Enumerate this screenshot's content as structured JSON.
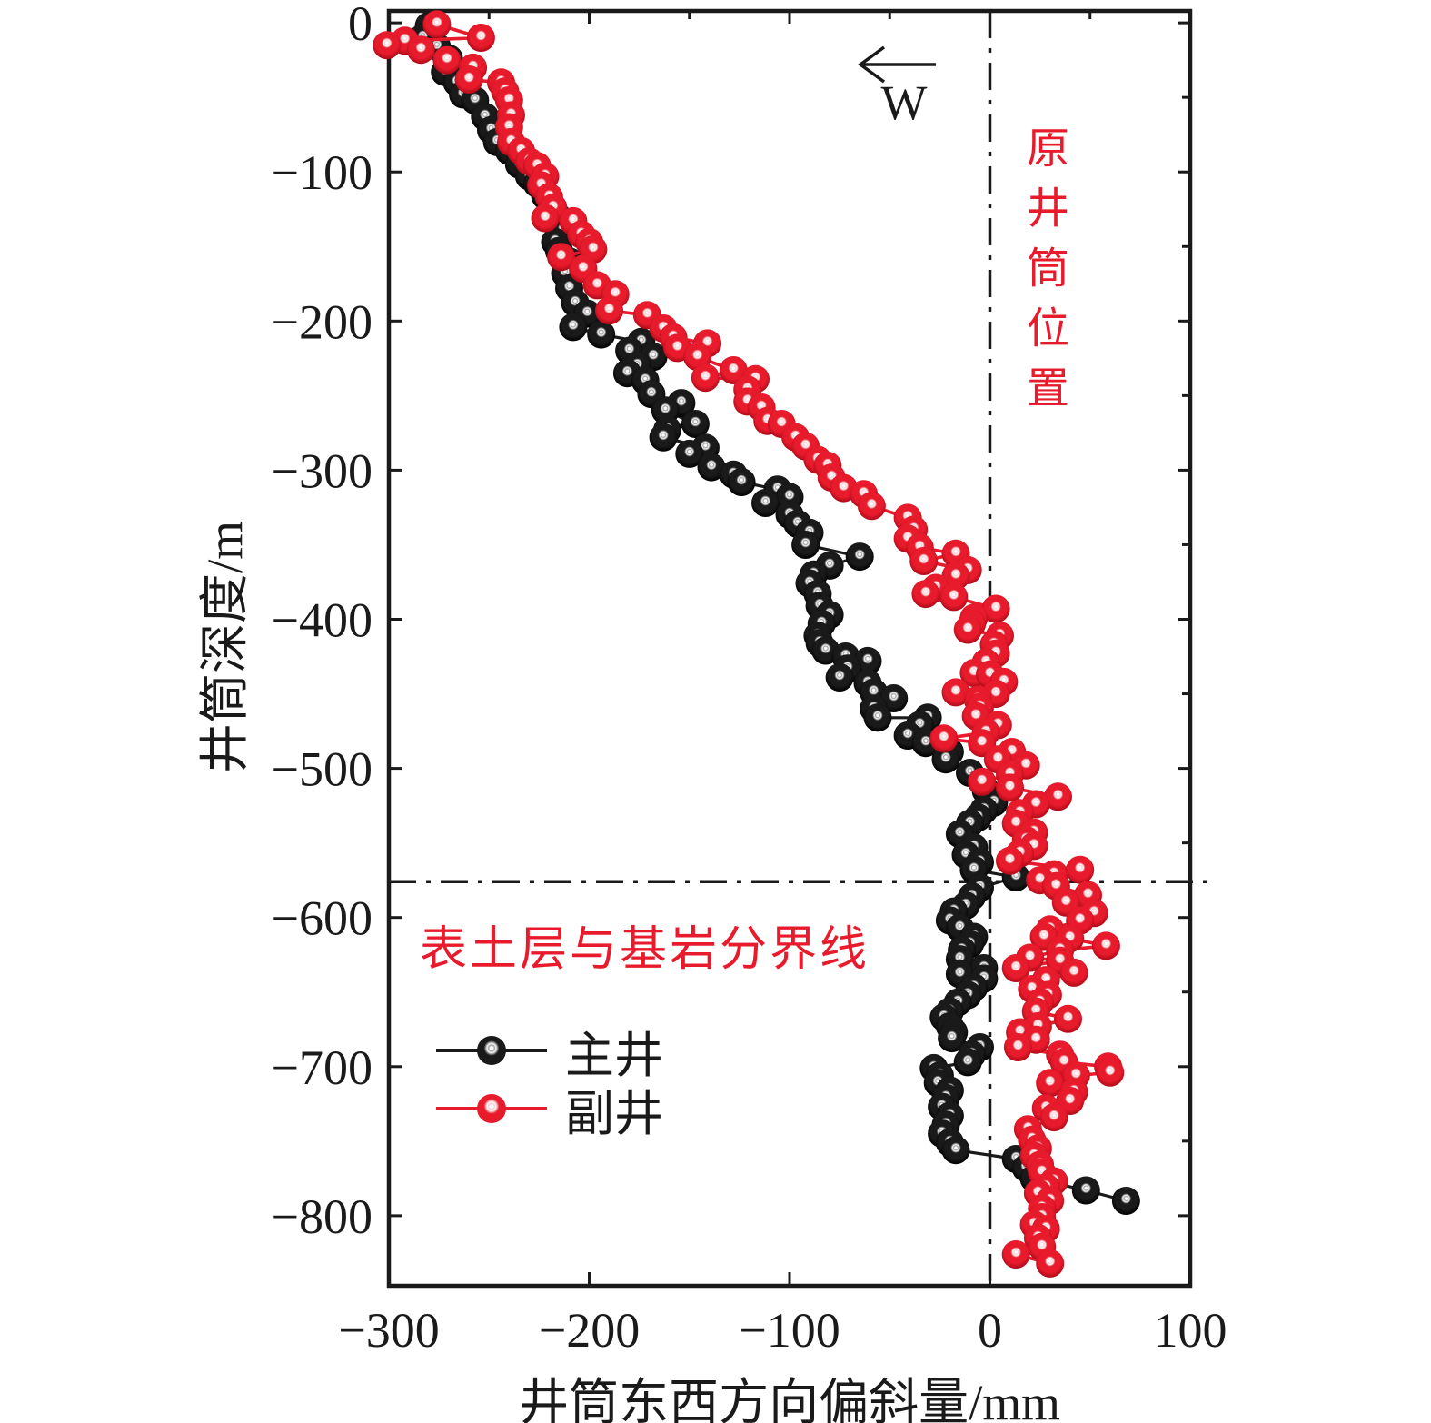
{
  "page": {
    "background": "#ffffff",
    "axis_color": "#1a1a1a"
  },
  "chart_data": {
    "type": "scatter",
    "title": "",
    "xlabel": "井筒东西方向偏斜量/mm",
    "ylabel": "井筒深度/m",
    "xlim": [
      -300,
      100
    ],
    "ylim": [
      -847,
      8
    ],
    "x_ticks": [
      -300,
      -200,
      -100,
      0,
      100
    ],
    "y_ticks": [
      0,
      -100,
      -200,
      -300,
      -400,
      -500,
      -600,
      -700,
      -800
    ],
    "minor_tick_step": 50,
    "grid": false,
    "legend_position": "inside-lower-left",
    "annotations": {
      "annotation_color": "#e81b2c",
      "west_arrow": {
        "label": "W"
      },
      "original_shaft_line": {
        "x": 0,
        "label": "原井筒位置"
      },
      "boundary_line": {
        "depth": -576,
        "label": "表土层与基岩分界线"
      }
    },
    "series": [
      {
        "name": "主井",
        "color": "#1a1a1a",
        "color_dark": "#000000",
        "highlight": "#9a9a9a",
        "points": [
          [
            -280,
            -2
          ],
          [
            -283,
            -10
          ],
          [
            -276,
            -16
          ],
          [
            -270,
            -24
          ],
          [
            -272,
            -33
          ],
          [
            -266,
            -40
          ],
          [
            -263,
            -48
          ],
          [
            -257,
            -52
          ],
          [
            -252,
            -63
          ],
          [
            -249,
            -72
          ],
          [
            -246,
            -80
          ],
          [
            -240,
            -86
          ],
          [
            -235,
            -95
          ],
          [
            -230,
            -103
          ],
          [
            -226,
            -108
          ],
          [
            -222,
            -116
          ],
          [
            -218,
            -124
          ],
          [
            -215,
            -131
          ],
          [
            -213,
            -139
          ],
          [
            -217,
            -147
          ],
          [
            -215,
            -153
          ],
          [
            -210,
            -160
          ],
          [
            -212,
            -168
          ],
          [
            -210,
            -178
          ],
          [
            -207,
            -188
          ],
          [
            -201,
            -195
          ],
          [
            -208,
            -204
          ],
          [
            -194,
            -209
          ],
          [
            -174,
            -214
          ],
          [
            -180,
            -220
          ],
          [
            -168,
            -224
          ],
          [
            -176,
            -230
          ],
          [
            -181,
            -235
          ],
          [
            -172,
            -240
          ],
          [
            -169,
            -249
          ],
          [
            -154,
            -255
          ],
          [
            -162,
            -260
          ],
          [
            -147,
            -269
          ],
          [
            -161,
            -273
          ],
          [
            -163,
            -278
          ],
          [
            -142,
            -285
          ],
          [
            -150,
            -289
          ],
          [
            -139,
            -298
          ],
          [
            -128,
            -303
          ],
          [
            -124,
            -308
          ],
          [
            -106,
            -313
          ],
          [
            -100,
            -318
          ],
          [
            -112,
            -322
          ],
          [
            -100,
            -330
          ],
          [
            -96,
            -336
          ],
          [
            -90,
            -342
          ],
          [
            -92,
            -350
          ],
          [
            -65,
            -358
          ],
          [
            -80,
            -364
          ],
          [
            -88,
            -370
          ],
          [
            -90,
            -376
          ],
          [
            -86,
            -383
          ],
          [
            -85,
            -391
          ],
          [
            -80,
            -397
          ],
          [
            -84,
            -403
          ],
          [
            -86,
            -411
          ],
          [
            -85,
            -416
          ],
          [
            -82,
            -421
          ],
          [
            -72,
            -425
          ],
          [
            -61,
            -428
          ],
          [
            -71,
            -433
          ],
          [
            -75,
            -439
          ],
          [
            -61,
            -443
          ],
          [
            -58,
            -449
          ],
          [
            -48,
            -453
          ],
          [
            -58,
            -460
          ],
          [
            -56,
            -466
          ],
          [
            -31,
            -466
          ],
          [
            -35,
            -471
          ],
          [
            -41,
            -478
          ],
          [
            -32,
            -483
          ],
          [
            -20,
            -489
          ],
          [
            -22,
            -494
          ],
          [
            -10,
            -503
          ],
          [
            -4,
            -509
          ],
          [
            -2,
            -515
          ],
          [
            2,
            -523
          ],
          [
            -3,
            -528
          ],
          [
            -6,
            -533
          ],
          [
            -10,
            -537
          ],
          [
            -15,
            -544
          ],
          [
            -8,
            -553
          ],
          [
            -12,
            -558
          ],
          [
            -5,
            -563
          ],
          [
            -8,
            -568
          ],
          [
            13,
            -573
          ],
          [
            -5,
            -580
          ],
          [
            -9,
            -586
          ],
          [
            -12,
            -592
          ],
          [
            -18,
            -596
          ],
          [
            -20,
            -602
          ],
          [
            -15,
            -607
          ],
          [
            -8,
            -613
          ],
          [
            -10,
            -618
          ],
          [
            -14,
            -622
          ],
          [
            -15,
            -628
          ],
          [
            -3,
            -634
          ],
          [
            -15,
            -638
          ],
          [
            -3,
            -641
          ],
          [
            -8,
            -647
          ],
          [
            -11,
            -652
          ],
          [
            -16,
            -657
          ],
          [
            -20,
            -663
          ],
          [
            -23,
            -667
          ],
          [
            -20,
            -673
          ],
          [
            -18,
            -677
          ],
          [
            -19,
            -681
          ],
          [
            -5,
            -687
          ],
          [
            -9,
            -692
          ],
          [
            -11,
            -697
          ],
          [
            -28,
            -701
          ],
          [
            -25,
            -706
          ],
          [
            -26,
            -711
          ],
          [
            -20,
            -716
          ],
          [
            -22,
            -721
          ],
          [
            -24,
            -727
          ],
          [
            -20,
            -733
          ],
          [
            -22,
            -739
          ],
          [
            -24,
            -745
          ],
          [
            -20,
            -751
          ],
          [
            -17,
            -756
          ],
          [
            13,
            -762
          ],
          [
            18,
            -768
          ],
          [
            22,
            -775
          ],
          [
            48,
            -783
          ],
          [
            68,
            -790
          ]
        ]
      },
      {
        "name": "副井",
        "color": "#e81b2c",
        "color_dark": "#ad0a18",
        "highlight": "#ffc9ce",
        "points": [
          [
            -276,
            -1
          ],
          [
            -254,
            -10
          ],
          [
            -292,
            -12
          ],
          [
            -301,
            -15
          ],
          [
            -284,
            -18
          ],
          [
            -271,
            -25
          ],
          [
            -258,
            -30
          ],
          [
            -260,
            -38
          ],
          [
            -244,
            -40
          ],
          [
            -242,
            -46
          ],
          [
            -240,
            -52
          ],
          [
            -239,
            -62
          ],
          [
            -240,
            -70
          ],
          [
            -239,
            -80
          ],
          [
            -234,
            -86
          ],
          [
            -230,
            -93
          ],
          [
            -226,
            -96
          ],
          [
            -222,
            -103
          ],
          [
            -224,
            -109
          ],
          [
            -220,
            -117
          ],
          [
            -218,
            -124
          ],
          [
            -222,
            -131
          ],
          [
            -208,
            -133
          ],
          [
            -204,
            -142
          ],
          [
            -200,
            -147
          ],
          [
            -198,
            -152
          ],
          [
            -214,
            -157
          ],
          [
            -203,
            -165
          ],
          [
            -196,
            -176
          ],
          [
            -187,
            -182
          ],
          [
            -190,
            -193
          ],
          [
            -171,
            -196
          ],
          [
            -163,
            -205
          ],
          [
            -158,
            -211
          ],
          [
            -141,
            -215
          ],
          [
            -156,
            -218
          ],
          [
            -146,
            -224
          ],
          [
            -128,
            -233
          ],
          [
            -142,
            -238
          ],
          [
            -117,
            -239
          ],
          [
            -121,
            -246
          ],
          [
            -121,
            -254
          ],
          [
            -114,
            -258
          ],
          [
            -111,
            -267
          ],
          [
            -104,
            -269
          ],
          [
            -97,
            -278
          ],
          [
            -92,
            -284
          ],
          [
            -86,
            -293
          ],
          [
            -81,
            -297
          ],
          [
            -79,
            -305
          ],
          [
            -73,
            -312
          ],
          [
            -63,
            -316
          ],
          [
            -59,
            -324
          ],
          [
            -41,
            -332
          ],
          [
            -38,
            -340
          ],
          [
            -41,
            -346
          ],
          [
            -35,
            -352
          ],
          [
            -17,
            -356
          ],
          [
            -33,
            -361
          ],
          [
            -11,
            -367
          ],
          [
            -17,
            -371
          ],
          [
            -27,
            -379
          ],
          [
            -32,
            -383
          ],
          [
            -18,
            -385
          ],
          [
            3,
            -393
          ],
          [
            -8,
            -399
          ],
          [
            -9,
            -403
          ],
          [
            -11,
            -407
          ],
          [
            5,
            -411
          ],
          [
            2,
            -417
          ],
          [
            3,
            -423
          ],
          [
            -2,
            -429
          ],
          [
            -8,
            -436
          ],
          [
            0,
            -437
          ],
          [
            7,
            -442
          ],
          [
            -17,
            -449
          ],
          [
            3,
            -450
          ],
          [
            -6,
            -454
          ],
          [
            -5,
            -459
          ],
          [
            -7,
            -465
          ],
          [
            4,
            -471
          ],
          [
            -2,
            -476
          ],
          [
            -23,
            -480
          ],
          [
            -4,
            -483
          ],
          [
            11,
            -489
          ],
          [
            4,
            -494
          ],
          [
            18,
            -498
          ],
          [
            10,
            -504
          ],
          [
            -4,
            -509
          ],
          [
            10,
            -513
          ],
          [
            34,
            -519
          ],
          [
            23,
            -524
          ],
          [
            15,
            -530
          ],
          [
            13,
            -537
          ],
          [
            22,
            -543
          ],
          [
            18,
            -548
          ],
          [
            22,
            -552
          ],
          [
            15,
            -557
          ],
          [
            10,
            -562
          ],
          [
            45,
            -568
          ],
          [
            32,
            -571
          ],
          [
            25,
            -575
          ],
          [
            33,
            -579
          ],
          [
            49,
            -585
          ],
          [
            38,
            -590
          ],
          [
            52,
            -597
          ],
          [
            45,
            -602
          ],
          [
            30,
            -608
          ],
          [
            27,
            -613
          ],
          [
            40,
            -614
          ],
          [
            58,
            -619
          ],
          [
            35,
            -622
          ],
          [
            20,
            -627
          ],
          [
            35,
            -629
          ],
          [
            13,
            -634
          ],
          [
            42,
            -637
          ],
          [
            28,
            -642
          ],
          [
            21,
            -648
          ],
          [
            29,
            -652
          ],
          [
            25,
            -657
          ],
          [
            23,
            -663
          ],
          [
            39,
            -668
          ],
          [
            24,
            -673
          ],
          [
            15,
            -677
          ],
          [
            23,
            -682
          ],
          [
            14,
            -687
          ],
          [
            35,
            -692
          ],
          [
            37,
            -697
          ],
          [
            59,
            -700
          ],
          [
            60,
            -704
          ],
          [
            43,
            -706
          ],
          [
            30,
            -711
          ],
          [
            42,
            -717
          ],
          [
            40,
            -723
          ],
          [
            28,
            -728
          ],
          [
            32,
            -734
          ],
          [
            19,
            -742
          ],
          [
            21,
            -749
          ],
          [
            24,
            -755
          ],
          [
            22,
            -760
          ],
          [
            25,
            -766
          ],
          [
            26,
            -771
          ],
          [
            32,
            -777
          ],
          [
            28,
            -781
          ],
          [
            24,
            -785
          ],
          [
            30,
            -790
          ],
          [
            26,
            -795
          ],
          [
            26,
            -801
          ],
          [
            22,
            -806
          ],
          [
            28,
            -809
          ],
          [
            24,
            -815
          ],
          [
            26,
            -821
          ],
          [
            13,
            -826
          ],
          [
            30,
            -832
          ]
        ]
      }
    ]
  }
}
